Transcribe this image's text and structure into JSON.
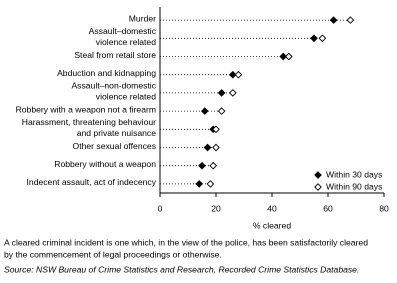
{
  "chart_data": {
    "type": "dot",
    "categories": [
      [
        "Murder"
      ],
      [
        "Assault–domestic",
        "violence related"
      ],
      [
        "Steal from retail store"
      ],
      [
        "Abduction and kidnapping"
      ],
      [
        "Assault–non-domestic",
        "violence related"
      ],
      [
        "Robbery with a weapon not a firearm"
      ],
      [
        "Harassment, threatening behaviour",
        "and private nuisance"
      ],
      [
        "Other sexual offences"
      ],
      [
        "Robbery without a weapon"
      ],
      [
        "Indecent assault, act of indecency"
      ]
    ],
    "series": [
      {
        "name": "Within 30 days",
        "color": "#000000",
        "marker": "filled",
        "values": [
          62,
          55,
          44,
          26,
          22,
          16,
          19,
          17,
          15,
          14
        ]
      },
      {
        "name": "Within 90 days",
        "color": "#000000",
        "marker": "open",
        "values": [
          68,
          58,
          46,
          28,
          26,
          22,
          20,
          20,
          19,
          18
        ]
      }
    ],
    "xlabel": "% cleared",
    "xlim": [
      0,
      80
    ],
    "xticks": [
      0,
      20,
      40,
      60,
      80
    ],
    "legend": "lower right",
    "note": [
      "A cleared criminal incident is one which, in the view of the police, has been satisfactorily cleared",
      "by the commencement of legal proceedings or otherwise."
    ],
    "source": "Source: NSW Bureau of Crime Statistics and Research, Recorded Crime Statistics Database."
  }
}
